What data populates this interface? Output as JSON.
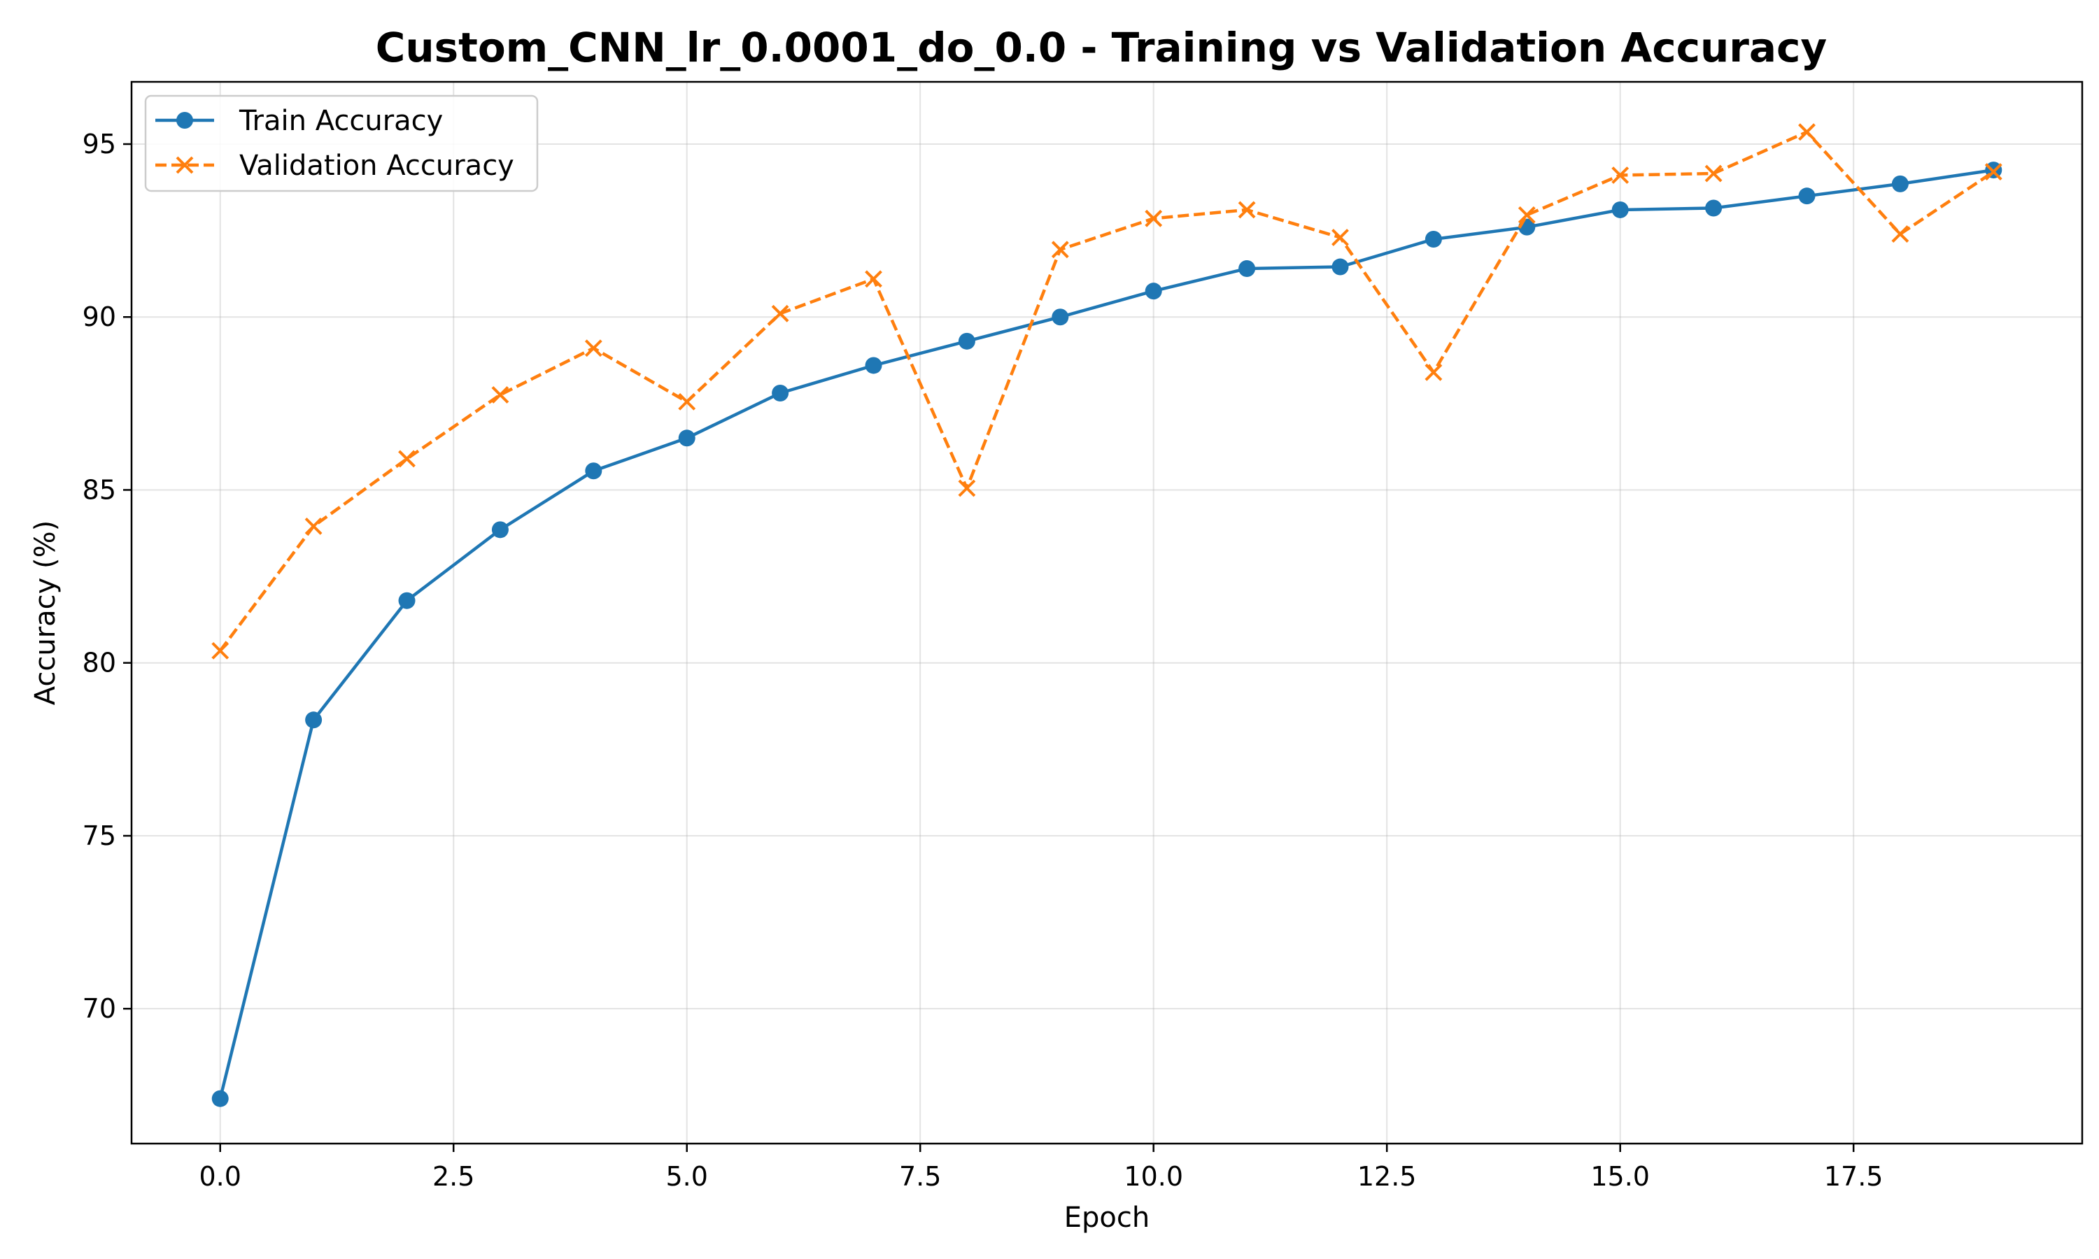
{
  "chart_data": {
    "type": "line",
    "title": "Custom_CNN_lr_0.0001_do_0.0 - Training vs Validation Accuracy",
    "xlabel": "Epoch",
    "ylabel": "Accuracy (%)",
    "xlim": [
      -0.95,
      19.95
    ],
    "ylim": [
      66.1,
      96.8
    ],
    "xticks": [
      0.0,
      2.5,
      5.0,
      7.5,
      10.0,
      12.5,
      15.0,
      17.5
    ],
    "xtick_labels": [
      "0.0",
      "2.5",
      "5.0",
      "7.5",
      "10.0",
      "12.5",
      "15.0",
      "17.5"
    ],
    "yticks": [
      70,
      75,
      80,
      85,
      90,
      95
    ],
    "ytick_labels": [
      "70",
      "75",
      "80",
      "85",
      "90",
      "95"
    ],
    "grid": true,
    "legend_position": "top-left",
    "x": [
      0,
      1,
      2,
      3,
      4,
      5,
      6,
      7,
      8,
      9,
      10,
      11,
      12,
      13,
      14,
      15,
      16,
      17,
      18,
      19
    ],
    "series": [
      {
        "name": "Train Accuracy",
        "color": "#1f77b4",
        "marker": "circle",
        "linestyle": "solid",
        "values": [
          67.4,
          78.35,
          81.8,
          83.85,
          85.55,
          86.5,
          87.8,
          88.6,
          89.3,
          90.0,
          90.75,
          91.4,
          91.45,
          92.25,
          92.6,
          93.1,
          93.15,
          93.5,
          93.85,
          94.25
        ]
      },
      {
        "name": "Validation Accuracy",
        "color": "#ff7f0e",
        "marker": "x",
        "linestyle": "dashed",
        "values": [
          80.35,
          83.95,
          85.9,
          87.75,
          89.1,
          87.55,
          90.1,
          91.1,
          85.05,
          91.95,
          92.85,
          93.1,
          92.3,
          88.4,
          92.95,
          94.1,
          94.15,
          95.35,
          92.4,
          94.2
        ]
      }
    ]
  }
}
